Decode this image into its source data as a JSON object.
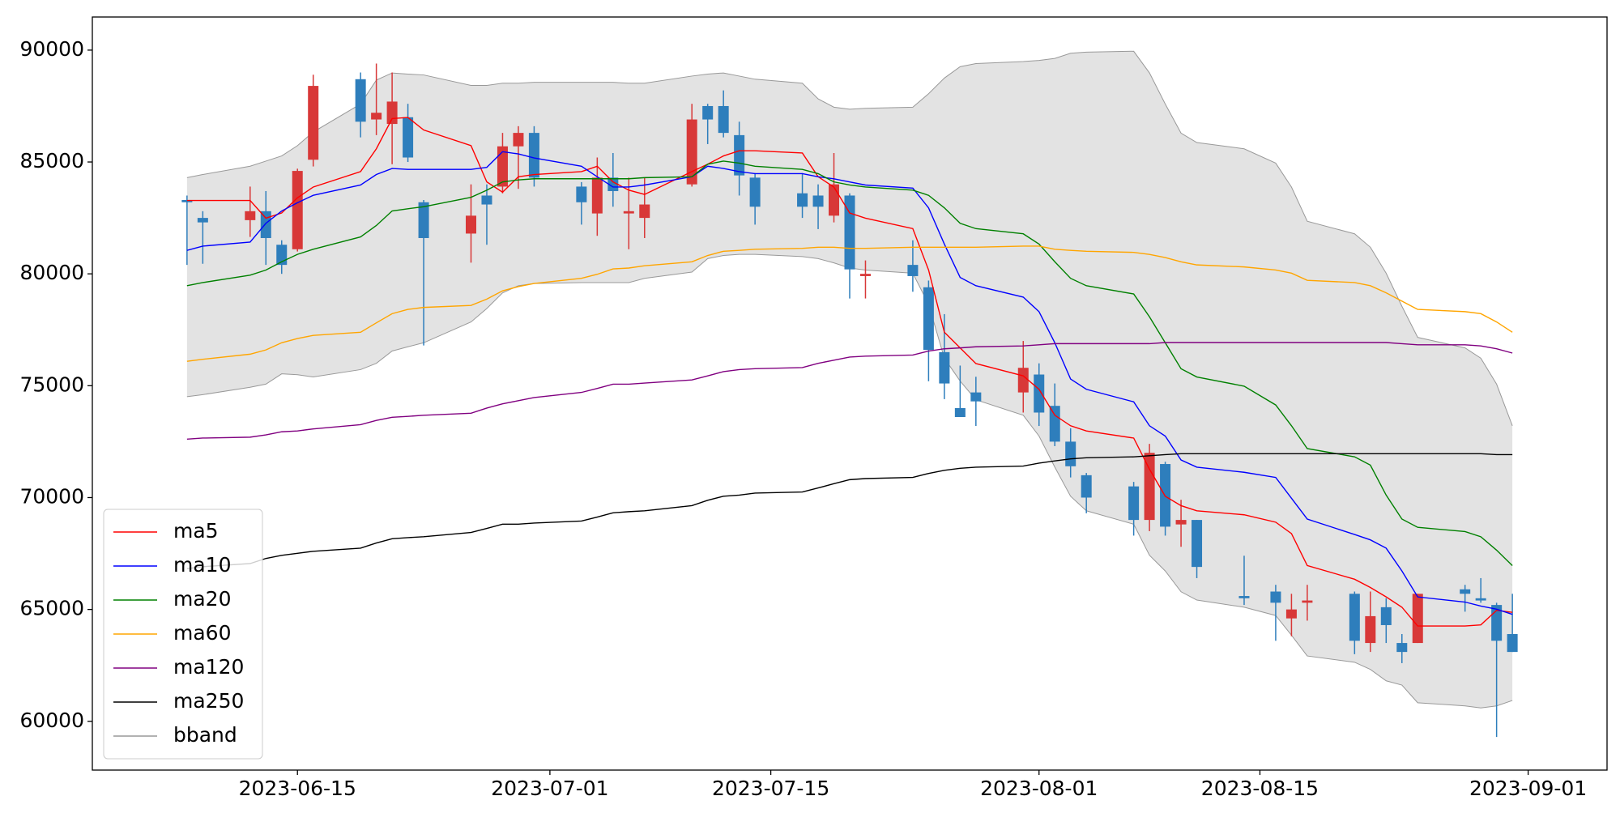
{
  "chart_data": {
    "type": "candlestick",
    "x": [
      "2023-06-08",
      "2023-06-09",
      "2023-06-12",
      "2023-06-13",
      "2023-06-14",
      "2023-06-15",
      "2023-06-16",
      "2023-06-19",
      "2023-06-20",
      "2023-06-21",
      "2023-06-22",
      "2023-06-23",
      "2023-06-26",
      "2023-06-27",
      "2023-06-28",
      "2023-06-29",
      "2023-06-30",
      "2023-07-03",
      "2023-07-04",
      "2023-07-05",
      "2023-07-06",
      "2023-07-07",
      "2023-07-10",
      "2023-07-11",
      "2023-07-12",
      "2023-07-13",
      "2023-07-14",
      "2023-07-17",
      "2023-07-18",
      "2023-07-19",
      "2023-07-20",
      "2023-07-21",
      "2023-07-24",
      "2023-07-25",
      "2023-07-26",
      "2023-07-27",
      "2023-07-28",
      "2023-07-31",
      "2023-08-01",
      "2023-08-02",
      "2023-08-03",
      "2023-08-04",
      "2023-08-07",
      "2023-08-08",
      "2023-08-09",
      "2023-08-10",
      "2023-08-11",
      "2023-08-14",
      "2023-08-16",
      "2023-08-17",
      "2023-08-18",
      "2023-08-21",
      "2023-08-22",
      "2023-08-23",
      "2023-08-24",
      "2023-08-25",
      "2023-08-28",
      "2023-08-29",
      "2023-08-30",
      "2023-08-31"
    ],
    "open": [
      83300,
      82500,
      82400,
      82800,
      81300,
      81100,
      85100,
      88700,
      86900,
      86700,
      87000,
      83200,
      81800,
      83500,
      83900,
      85700,
      86300,
      83900,
      82700,
      84300,
      82700,
      82500,
      84000,
      87500,
      87500,
      86200,
      84300,
      83600,
      83500,
      82600,
      83500,
      79900,
      80400,
      79400,
      76500,
      74000,
      74700,
      74700,
      75500,
      74100,
      72500,
      71000,
      70500,
      69000,
      71500,
      68800,
      69000,
      65600,
      65800,
      64600,
      65300,
      65700,
      63500,
      65100,
      63500,
      63500,
      65900,
      65500,
      65200,
      63900
    ],
    "high": [
      83500,
      82800,
      83900,
      83700,
      81500,
      84700,
      88900,
      89000,
      89400,
      89000,
      87600,
      83300,
      84000,
      84000,
      86300,
      86600,
      86600,
      84100,
      85200,
      85400,
      84300,
      84300,
      87600,
      87600,
      88200,
      86800,
      84500,
      84500,
      84000,
      85400,
      83600,
      80600,
      81500,
      79700,
      78200,
      75900,
      75400,
      77000,
      76000,
      75100,
      73100,
      71100,
      70700,
      72400,
      71600,
      69900,
      69000,
      67400,
      66100,
      65700,
      66100,
      65800,
      65800,
      65500,
      63900,
      65700,
      66100,
      66400,
      65300,
      65700
    ],
    "low": [
      80400,
      80450,
      81650,
      80400,
      80000,
      81000,
      84800,
      86100,
      86200,
      84900,
      85000,
      76800,
      80500,
      81300,
      83600,
      83800,
      83900,
      82200,
      81700,
      83000,
      81100,
      81600,
      83900,
      85800,
      86100,
      83500,
      82200,
      82500,
      82000,
      82300,
      78900,
      78900,
      79200,
      75200,
      74400,
      73600,
      73200,
      73800,
      73200,
      72300,
      70900,
      69300,
      68300,
      68500,
      68300,
      67800,
      66400,
      65200,
      63600,
      63800,
      64500,
      63000,
      63100,
      63500,
      62600,
      63500,
      64900,
      65300,
      59300,
      63100
    ],
    "close": [
      83200,
      82300,
      82800,
      81600,
      80400,
      84600,
      88400,
      86800,
      87200,
      87700,
      85200,
      81600,
      82600,
      83100,
      85700,
      86300,
      84300,
      83200,
      84300,
      83700,
      82800,
      83100,
      86900,
      86900,
      86300,
      84400,
      83000,
      83000,
      83000,
      84000,
      80200,
      80000,
      79900,
      76600,
      75100,
      73600,
      74300,
      75800,
      73800,
      72500,
      71400,
      70000,
      69000,
      72000,
      68700,
      69000,
      66900,
      65500,
      65300,
      65000,
      65400,
      63600,
      64700,
      64300,
      63100,
      65700,
      65700,
      65400,
      63600,
      63100
    ],
    "up_color": "#d83838",
    "down_color": "#2e7ebc",
    "series": [
      {
        "name": "ma5",
        "color": "#ff0000",
        "values": [
          83280,
          83280,
          83280,
          82490,
          82720,
          83400,
          83880,
          84570,
          85590,
          86940,
          86990,
          86430,
          85730,
          84110,
          83650,
          84340,
          84440,
          84570,
          84810,
          84110,
          83740,
          83550,
          84570,
          84900,
          85270,
          85500,
          85500,
          85400,
          84340,
          83880,
          82720,
          82490,
          82020,
          80170,
          77390,
          76690,
          75990,
          75440,
          74840,
          73680,
          73210,
          72980,
          72660,
          71270,
          70060,
          69640,
          69410,
          69230,
          68900,
          68390,
          66960,
          66350,
          65980,
          65560,
          65100,
          64260,
          64260,
          64310,
          64960,
          64870
        ]
      },
      {
        "name": "ma10",
        "color": "#0000ff",
        "values": [
          81050,
          81240,
          81420,
          82260,
          82810,
          83180,
          83510,
          83970,
          84440,
          84710,
          84670,
          84670,
          84670,
          84760,
          85460,
          85360,
          85180,
          84810,
          84340,
          83880,
          83880,
          83970,
          84340,
          84810,
          84710,
          84570,
          84480,
          84480,
          84340,
          84250,
          84110,
          83970,
          83830,
          82950,
          81330,
          79840,
          79470,
          78960,
          78310,
          76920,
          75300,
          74840,
          74280,
          73210,
          72750,
          71680,
          71360,
          71130,
          70900,
          69970,
          69040,
          68350,
          68110,
          67740,
          66720,
          65560,
          65330,
          65150,
          65010,
          64780
        ]
      },
      {
        "name": "ma20",
        "color": "#008000",
        "values": [
          79470,
          79610,
          79940,
          80170,
          80540,
          80870,
          81100,
          81650,
          82160,
          82810,
          82910,
          83000,
          83420,
          83740,
          84110,
          84200,
          84250,
          84250,
          84250,
          84250,
          84250,
          84300,
          84340,
          84900,
          85040,
          84950,
          84810,
          84670,
          84480,
          84110,
          83970,
          83880,
          83740,
          83510,
          82950,
          82260,
          82020,
          81790,
          81330,
          80540,
          79800,
          79470,
          79100,
          78080,
          76920,
          75760,
          75390,
          74980,
          74140,
          73210,
          72190,
          71820,
          71450,
          70110,
          69040,
          68670,
          68480,
          68250,
          67650,
          66960
        ]
      },
      {
        "name": "ma60",
        "color": "#ffa500",
        "values": [
          76090,
          76180,
          76410,
          76600,
          76920,
          77110,
          77250,
          77390,
          77810,
          78220,
          78410,
          78500,
          78590,
          78870,
          79240,
          79430,
          79570,
          79800,
          79980,
          80220,
          80260,
          80360,
          80540,
          80820,
          81010,
          81050,
          81100,
          81140,
          81190,
          81190,
          81140,
          81140,
          81190,
          81190,
          81190,
          81190,
          81190,
          81240,
          81240,
          81100,
          81050,
          81010,
          80960,
          80870,
          80730,
          80540,
          80400,
          80310,
          80170,
          80030,
          79710,
          79610,
          79470,
          79150,
          78780,
          78410,
          78310,
          78220,
          77850,
          77390
        ]
      },
      {
        "name": "ma120",
        "color": "#800080",
        "values": [
          72610,
          72660,
          72700,
          72800,
          72940,
          72980,
          73070,
          73260,
          73450,
          73590,
          73630,
          73680,
          73770,
          74000,
          74190,
          74330,
          74470,
          74700,
          74880,
          75070,
          75070,
          75120,
          75260,
          75440,
          75630,
          75720,
          75760,
          75810,
          76000,
          76140,
          76280,
          76320,
          76370,
          76550,
          76650,
          76690,
          76740,
          76780,
          76830,
          76880,
          76880,
          76880,
          76880,
          76880,
          76930,
          76930,
          76930,
          76930,
          76930,
          76930,
          76930,
          76930,
          76930,
          76930,
          76880,
          76830,
          76830,
          76780,
          76650,
          76460
        ]
      },
      {
        "name": "ma250",
        "color": "#000000",
        "values": [
          66820,
          66910,
          67050,
          67280,
          67420,
          67510,
          67600,
          67740,
          67970,
          68160,
          68210,
          68250,
          68440,
          68620,
          68810,
          68810,
          68860,
          68950,
          69130,
          69320,
          69370,
          69410,
          69640,
          69880,
          70060,
          70110,
          70200,
          70250,
          70430,
          70620,
          70800,
          70850,
          70900,
          71080,
          71220,
          71310,
          71360,
          71410,
          71540,
          71640,
          71730,
          71780,
          71820,
          71870,
          71920,
          71960,
          71960,
          71960,
          71960,
          71960,
          71960,
          71960,
          71960,
          71960,
          71960,
          71960,
          71960,
          71960,
          71920,
          71920
        ]
      }
    ],
    "bband": {
      "name": "bband",
      "color": "#999999",
      "fill": "#e3e3e3",
      "upper": [
        84300,
        84440,
        84810,
        85040,
        85270,
        85730,
        86340,
        87590,
        88660,
        88980,
        88930,
        88890,
        88420,
        88420,
        88520,
        88520,
        88560,
        88560,
        88560,
        88560,
        88520,
        88520,
        88840,
        88930,
        88980,
        88840,
        88700,
        88520,
        87820,
        87450,
        87360,
        87400,
        87450,
        88050,
        88750,
        89260,
        89400,
        89490,
        89540,
        89630,
        89860,
        89910,
        89950,
        88980,
        87590,
        86290,
        85870,
        85590,
        84950,
        83880,
        82350,
        81790,
        81190,
        80030,
        78550,
        77160,
        76690,
        76230,
        75070,
        73210
      ],
      "lower": [
        74510,
        74600,
        74930,
        75070,
        75530,
        75490,
        75390,
        75720,
        76000,
        76550,
        76740,
        76920,
        77850,
        78450,
        79150,
        79470,
        79570,
        79610,
        79610,
        79610,
        79610,
        79800,
        80080,
        80680,
        80820,
        80870,
        80870,
        80770,
        80680,
        80490,
        80260,
        80170,
        80030,
        78640,
        76230,
        75210,
        74370,
        73680,
        72750,
        71360,
        70060,
        69410,
        68810,
        67420,
        66720,
        65790,
        65420,
        65100,
        64730,
        63850,
        62920,
        62640,
        62320,
        61810,
        61620,
        60830,
        60690,
        60600,
        60690,
        60930
      ]
    },
    "xlim": [
      "2023-06-02",
      "2023-09-06"
    ],
    "xticks": [
      "2023-06-15",
      "2023-07-01",
      "2023-07-15",
      "2023-08-01",
      "2023-08-15",
      "2023-09-01"
    ],
    "ylim": [
      57820,
      91480
    ],
    "yticks": [
      60000,
      65000,
      70000,
      75000,
      80000,
      85000,
      90000
    ],
    "legend": "lower left"
  }
}
